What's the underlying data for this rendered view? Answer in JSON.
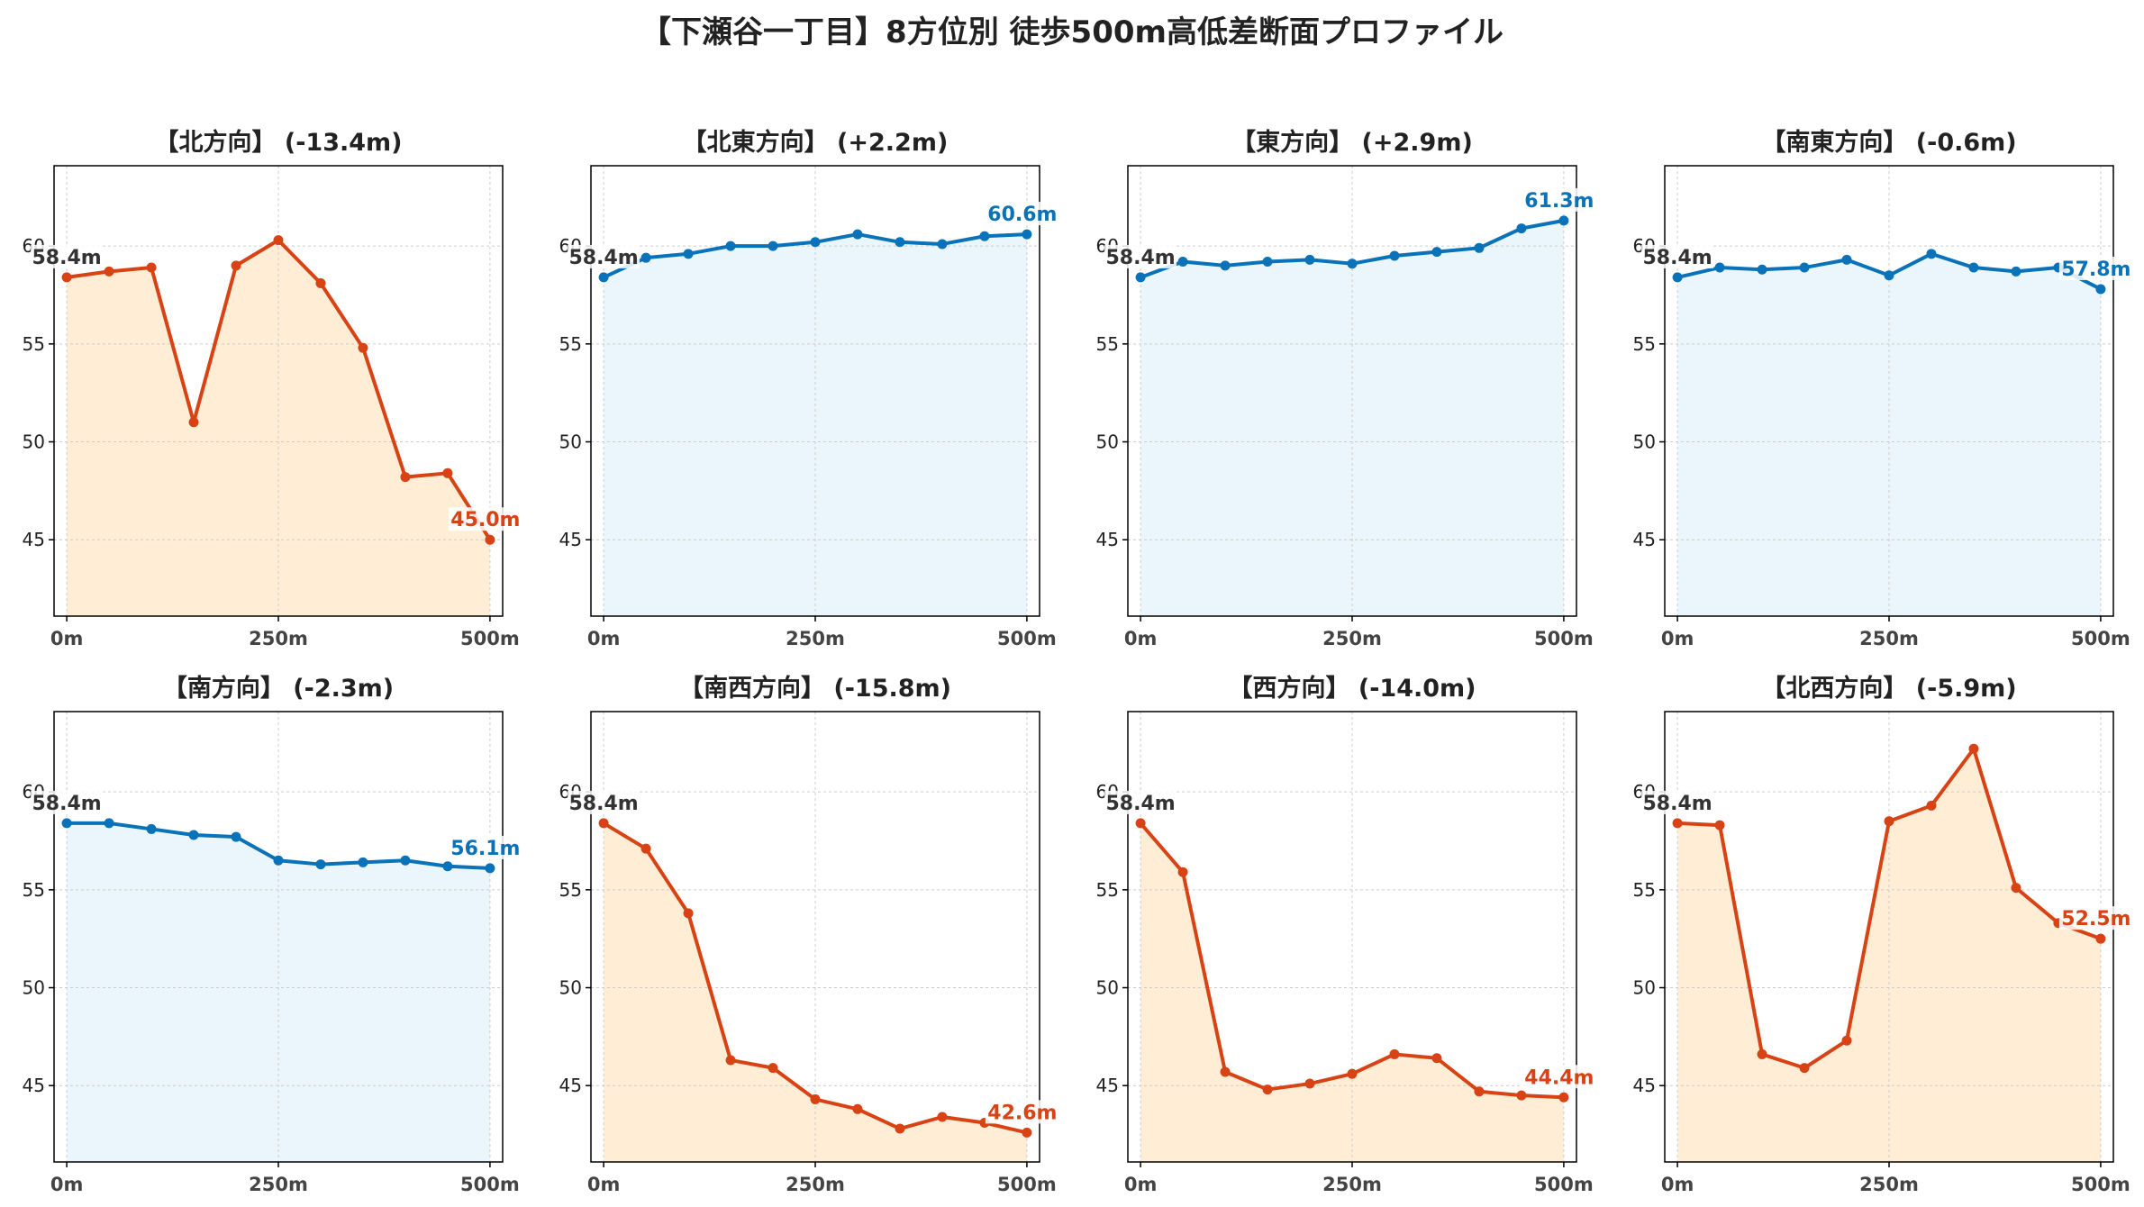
{
  "page": {
    "title": "【下瀬谷一丁目】8方位別 徒歩500m高低差断面プロファイル"
  },
  "colors": {
    "down_line": "#d84315",
    "down_fill": "#ffeed5",
    "up_line": "#0a72b8",
    "up_fill": "#eaf6fb",
    "start_label": "#333333",
    "grid": "#cccccc",
    "frame": "#000000"
  },
  "axis": {
    "x_ticks": [
      0,
      250,
      500
    ],
    "x_tick_labels": [
      "0m",
      "250m",
      "500m"
    ],
    "y_ticks": [
      45,
      50,
      55,
      60
    ],
    "y_tick_labels": [
      "45",
      "50",
      "55",
      "60"
    ],
    "ylim": [
      41.1,
      64.1
    ],
    "xlim": [
      -15,
      515
    ],
    "grid": true
  },
  "chart_data": [
    {
      "type": "area",
      "title": "【北方向】 (-13.4m)",
      "trend": "down",
      "start_label": "58.4m",
      "end_label": "45.0m",
      "x": [
        0,
        50,
        100,
        150,
        200,
        250,
        300,
        350,
        400,
        450,
        500
      ],
      "y": [
        58.4,
        58.7,
        58.9,
        51.0,
        59.0,
        60.3,
        58.1,
        54.8,
        48.2,
        48.4,
        45.0
      ]
    },
    {
      "type": "area",
      "title": "【北東方向】 (+2.2m)",
      "trend": "up",
      "start_label": "58.4m",
      "end_label": "60.6m",
      "x": [
        0,
        50,
        100,
        150,
        200,
        250,
        300,
        350,
        400,
        450,
        500
      ],
      "y": [
        58.4,
        59.4,
        59.6,
        60.0,
        60.0,
        60.2,
        60.6,
        60.2,
        60.1,
        60.5,
        60.6
      ]
    },
    {
      "type": "area",
      "title": "【東方向】 (+2.9m)",
      "trend": "up",
      "start_label": "58.4m",
      "end_label": "61.3m",
      "x": [
        0,
        50,
        100,
        150,
        200,
        250,
        300,
        350,
        400,
        450,
        500
      ],
      "y": [
        58.4,
        59.2,
        59.0,
        59.2,
        59.3,
        59.1,
        59.5,
        59.7,
        59.9,
        60.9,
        61.3
      ]
    },
    {
      "type": "area",
      "title": "【南東方向】 (-0.6m)",
      "trend": "up",
      "start_label": "58.4m",
      "end_label": "57.8m",
      "x": [
        0,
        50,
        100,
        150,
        200,
        250,
        300,
        350,
        400,
        450,
        500
      ],
      "y": [
        58.4,
        58.9,
        58.8,
        58.9,
        59.3,
        58.5,
        59.6,
        58.9,
        58.7,
        58.9,
        57.8
      ]
    },
    {
      "type": "area",
      "title": "【南方向】 (-2.3m)",
      "trend": "up",
      "start_label": "58.4m",
      "end_label": "56.1m",
      "x": [
        0,
        50,
        100,
        150,
        200,
        250,
        300,
        350,
        400,
        450,
        500
      ],
      "y": [
        58.4,
        58.4,
        58.1,
        57.8,
        57.7,
        56.5,
        56.3,
        56.4,
        56.5,
        56.2,
        56.1
      ]
    },
    {
      "type": "area",
      "title": "【南西方向】 (-15.8m)",
      "trend": "down",
      "start_label": "58.4m",
      "end_label": "42.6m",
      "x": [
        0,
        50,
        100,
        150,
        200,
        250,
        300,
        350,
        400,
        450,
        500
      ],
      "y": [
        58.4,
        57.1,
        53.8,
        46.3,
        45.9,
        44.3,
        43.8,
        42.8,
        43.4,
        43.1,
        42.6
      ]
    },
    {
      "type": "area",
      "title": "【西方向】 (-14.0m)",
      "trend": "down",
      "start_label": "58.4m",
      "end_label": "44.4m",
      "x": [
        0,
        50,
        100,
        150,
        200,
        250,
        300,
        350,
        400,
        450,
        500
      ],
      "y": [
        58.4,
        55.9,
        45.7,
        44.8,
        45.1,
        45.6,
        46.6,
        46.4,
        44.7,
        44.5,
        44.4
      ]
    },
    {
      "type": "area",
      "title": "【北西方向】 (-5.9m)",
      "trend": "down",
      "start_label": "58.4m",
      "end_label": "52.5m",
      "x": [
        0,
        50,
        100,
        150,
        200,
        250,
        300,
        350,
        400,
        450,
        500
      ],
      "y": [
        58.4,
        58.3,
        46.6,
        45.9,
        47.3,
        58.5,
        59.3,
        62.2,
        55.1,
        53.3,
        52.5
      ]
    }
  ]
}
